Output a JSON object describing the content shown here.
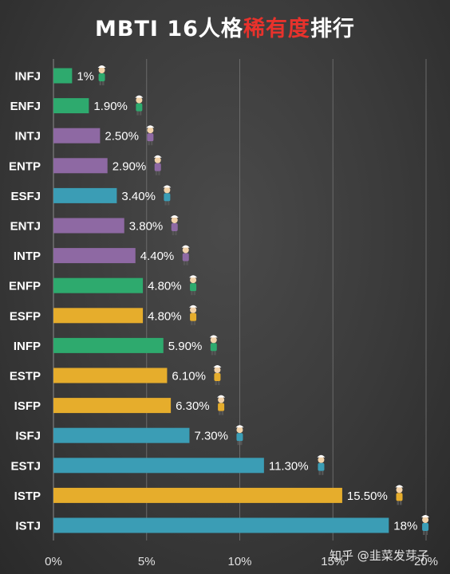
{
  "title": {
    "part1": "MBTI 16人格",
    "highlight": "稀有度",
    "part2": "排行"
  },
  "watermark": "知乎 @韭菜发芽子",
  "colors": {
    "NF": "#2eaa6e",
    "NT": "#8e69a3",
    "SJ": "#3b9db5",
    "SP": "#e6ad2c",
    "highlight": "#e8322c"
  },
  "chart_data": {
    "type": "bar",
    "orientation": "horizontal",
    "categories": [
      "INFJ",
      "ENFJ",
      "INTJ",
      "ENTP",
      "ESFJ",
      "ENTJ",
      "INTP",
      "ENFP",
      "ESFP",
      "INFP",
      "ESTP",
      "ISFP",
      "ISFJ",
      "ESTJ",
      "ISTP",
      "ISTJ"
    ],
    "values": [
      1,
      1.9,
      2.5,
      2.9,
      3.4,
      3.8,
      4.4,
      4.8,
      4.8,
      5.9,
      6.1,
      6.3,
      7.3,
      11.3,
      15.5,
      18
    ],
    "data_labels": [
      "1%",
      "1.90%",
      "2.50%",
      "2.90%",
      "3.40%",
      "3.80%",
      "4.40%",
      "4.80%",
      "4.80%",
      "5.90%",
      "6.10%",
      "6.30%",
      "7.30%",
      "11.30%",
      "15.50%",
      "18%"
    ],
    "groups": [
      "NF",
      "NF",
      "NT",
      "NT",
      "SJ",
      "NT",
      "NT",
      "NF",
      "SP",
      "NF",
      "SP",
      "SP",
      "SJ",
      "SJ",
      "SP",
      "SJ"
    ],
    "x_ticks": [
      "0%",
      "5%",
      "10%",
      "15%",
      "20%"
    ],
    "xlim": [
      0,
      20
    ],
    "grid": true,
    "xlabel": "",
    "ylabel": ""
  }
}
